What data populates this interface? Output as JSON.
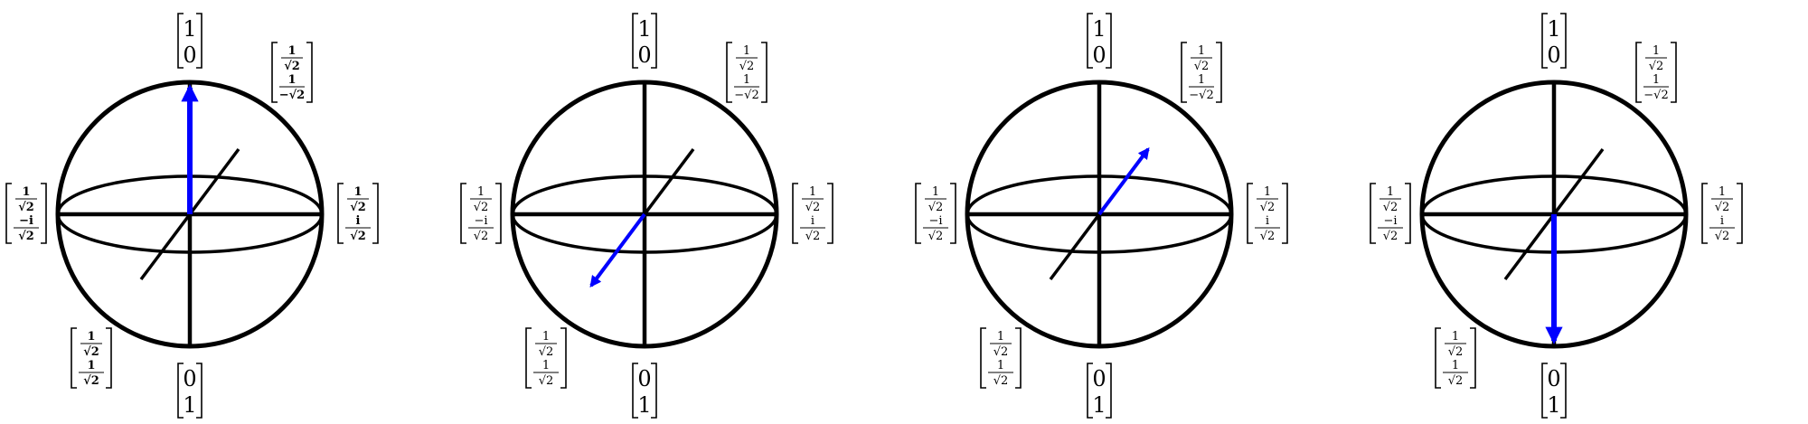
{
  "diagram": {
    "sphere_count": 4,
    "arrow_color": "#0000ff",
    "line_color": "#000000",
    "labels": {
      "top": [
        "1",
        "0"
      ],
      "bottom": [
        "0",
        "1"
      ],
      "top_right": {
        "upper": {
          "num": "1",
          "den": "√2"
        },
        "lower": {
          "num": "1",
          "den": "−√2"
        }
      },
      "left": {
        "upper": {
          "num": "1",
          "den": "√2"
        },
        "lower": {
          "num": "−i",
          "den": "√2"
        }
      },
      "right": {
        "upper": {
          "num": "1",
          "den": "√2"
        },
        "lower": {
          "num": "i",
          "den": "√2"
        }
      },
      "bottom_left": {
        "upper": {
          "num": "1",
          "den": "√2"
        },
        "lower": {
          "num": "1",
          "den": "√2"
        }
      }
    },
    "spheres": [
      {
        "state_arrow": "up",
        "highlighted": true
      },
      {
        "state_arrow": "front-diagonal",
        "highlighted": false
      },
      {
        "state_arrow": "back-diagonal",
        "highlighted": false
      },
      {
        "state_arrow": "down",
        "highlighted": false
      }
    ]
  }
}
